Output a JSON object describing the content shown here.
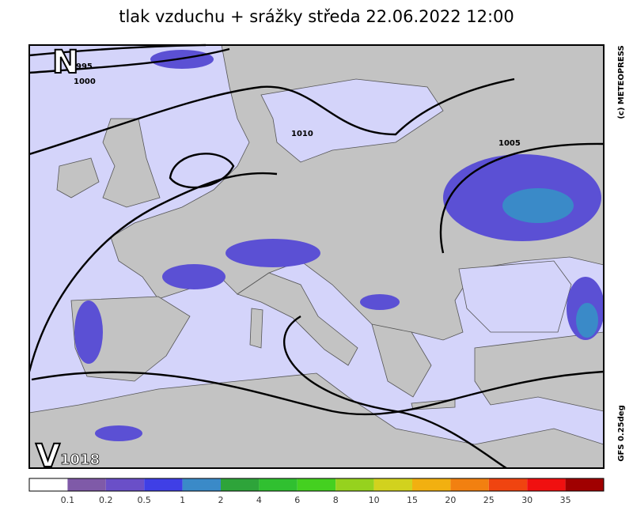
{
  "title": "tlak vzduchu + srážky  středa 22.06.2022 12:00",
  "map": {
    "labels": [
      {
        "text": "N",
        "kind": "big"
      },
      {
        "text": "995",
        "kind": "isobar"
      },
      {
        "text": "1000",
        "kind": "isobar"
      },
      {
        "text": "1010",
        "kind": "isobar"
      },
      {
        "text": "1005",
        "kind": "isobar"
      },
      {
        "text": "V",
        "kind": "big"
      },
      {
        "text": "1018",
        "kind": "center"
      }
    ],
    "copyright": "(c) METEOPRESS",
    "model": "GFS 0.25deg"
  },
  "legend": {
    "colors": [
      "#ffffff",
      "#7f5aa8",
      "#6a4fc8",
      "#3f3fe6",
      "#3a8ac8",
      "#2ea43a",
      "#30c030",
      "#44d020",
      "#96d21e",
      "#d2d21e",
      "#f2b010",
      "#f28010",
      "#f04410",
      "#f01010",
      "#a00000"
    ],
    "ticks": [
      0.1,
      0.2,
      0.5,
      1,
      2,
      4,
      6,
      8,
      10,
      15,
      20,
      25,
      30,
      35
    ]
  }
}
